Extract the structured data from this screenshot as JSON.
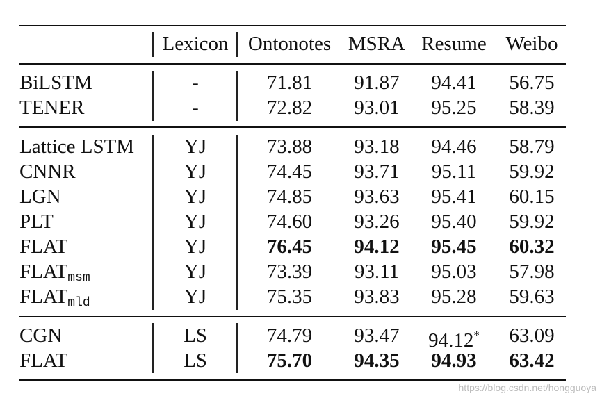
{
  "header": {
    "lexicon": "Lexicon",
    "ontonotes": "Ontonotes",
    "msra": "MSRA",
    "resume": "Resume",
    "weibo": "Weibo"
  },
  "rows": [
    {
      "method": "BiLSTM",
      "lexicon": "-",
      "ontonotes": "71.81",
      "msra": "91.87",
      "resume": "94.41",
      "weibo": "56.75"
    },
    {
      "method": "TENER",
      "lexicon": "-",
      "ontonotes": "72.82",
      "msra": "93.01",
      "resume": "95.25",
      "weibo": "58.39"
    },
    {
      "method": "Lattice LSTM",
      "lexicon": "YJ",
      "ontonotes": "73.88",
      "msra": "93.18",
      "resume": "94.46",
      "weibo": "58.79"
    },
    {
      "method": "CNNR",
      "lexicon": "YJ",
      "ontonotes": "74.45",
      "msra": "93.71",
      "resume": "95.11",
      "weibo": "59.92"
    },
    {
      "method": "LGN",
      "lexicon": "YJ",
      "ontonotes": "74.85",
      "msra": "93.63",
      "resume": "95.41",
      "weibo": "60.15"
    },
    {
      "method": "PLT",
      "lexicon": "YJ",
      "ontonotes": "74.60",
      "msra": "93.26",
      "resume": "95.40",
      "weibo": "59.92"
    },
    {
      "method": "FLAT",
      "lexicon": "YJ",
      "ontonotes": "76.45",
      "msra": "94.12",
      "resume": "95.45",
      "weibo": "60.32"
    },
    {
      "method": "FLAT",
      "sub": "msm",
      "lexicon": "YJ",
      "ontonotes": "73.39",
      "msra": "93.11",
      "resume": "95.03",
      "weibo": "57.98"
    },
    {
      "method": "FLAT",
      "sub": "mld",
      "lexicon": "YJ",
      "ontonotes": "75.35",
      "msra": "93.83",
      "resume": "95.28",
      "weibo": "59.63"
    },
    {
      "method": "CGN",
      "lexicon": "LS",
      "ontonotes": "74.79",
      "msra": "93.47",
      "resume": "94.12",
      "resume_mark": "*",
      "weibo": "63.09"
    },
    {
      "method": "FLAT",
      "lexicon": "LS",
      "ontonotes": "75.70",
      "msra": "94.35",
      "resume": "94.93",
      "weibo": "63.42"
    }
  ],
  "watermark": "https://blog.csdn.net/hongguoya"
}
